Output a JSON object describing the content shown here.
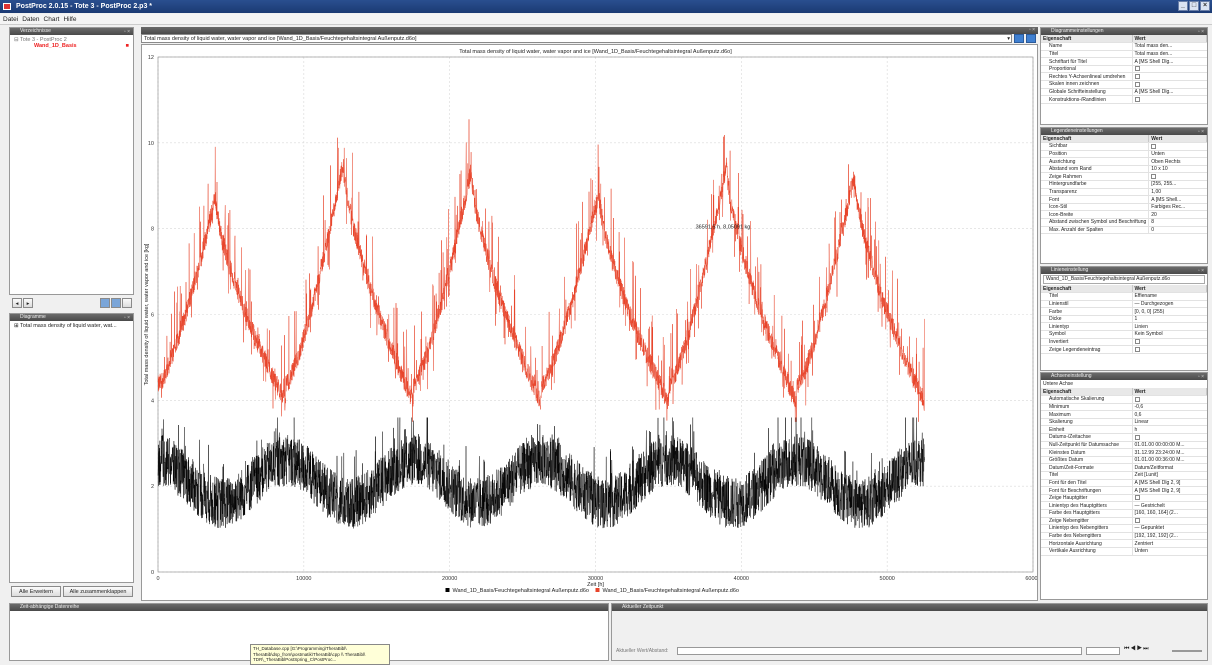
{
  "window": {
    "title": "PostProc 2.0.15 - Tote 3 - PostProc 2.p3 *"
  },
  "menu": [
    "Datei",
    "Daten",
    "Chart",
    "Hilfe"
  ],
  "left_top": {
    "header": "Verzeichnisse",
    "root": "Tote 3 - PostProc 2",
    "selected": "Wand_1D_Basis"
  },
  "left_bottom": {
    "header": "Diagramme",
    "item": "Total mass density of liquid water, wat..."
  },
  "left_buttons": {
    "expand": "Alle Erweitern",
    "collapse": "Alle zusammenklappen"
  },
  "chart_header": {
    "combo_value": "Total mass density of liquid water, water vapor and ice [Wand_1D_Basis/Feuchtegehaltsintegral Außenputz.d6o]"
  },
  "chart_data": {
    "type": "line",
    "title": "Total mass density of liquid water, water vapor and ice [Wand_1D_Basis/Feuchtegehaltsintegral Außenputz.d6o]",
    "xlabel": "Zeit [h]",
    "ylabel": "Total mass density of liquid water, water vapor and ice [kg]",
    "xlim": [
      0,
      60000
    ],
    "ylim": [
      0,
      12
    ],
    "xticks": [
      "0",
      "10000",
      "20000",
      "30000",
      "40000",
      "50000",
      "60000"
    ],
    "yticks": [
      "0",
      "2",
      "4",
      "6",
      "8",
      "10",
      "12"
    ],
    "grid": true,
    "annotation": "36591,5 h, 8,05091 kg",
    "series": [
      {
        "name": "Wand_1D_Basis/Feuchtegehaltsintegral Außenputz.d6o",
        "color": "#000000",
        "approx_range": [
          1,
          3.5
        ],
        "period_h": 8760,
        "x_end": 52560
      },
      {
        "name": "Wand_1D_Basis/Feuchtegehaltsintegral Außenputz.d6o",
        "color": "#e8442a",
        "approx_range": [
          3.6,
          9.8
        ],
        "period_h": 8760,
        "x_end": 52560,
        "annual_peaks": [
          9.2,
          10.0,
          9.8,
          9.3,
          9.9,
          9.7
        ]
      }
    ]
  },
  "right_panels": {
    "diagram": {
      "header": "Diagrammeinstellungen",
      "col_prop": "Eigenschaft",
      "col_val": "Wert",
      "rows": [
        [
          "Name",
          "Total mass den..."
        ],
        [
          "Titel",
          "Total mass den..."
        ],
        [
          "Schriftart für Titel",
          "A [MS Shell Dlg..."
        ],
        [
          "Proportional",
          ""
        ],
        [
          "Rechtes Y-Achsenlineal umdrehen",
          ""
        ],
        [
          "Skalen innen zeichnen",
          ""
        ],
        [
          "Globale Schrifteinstellung",
          "A [MS Shell Dlg..."
        ],
        [
          "Konstruktions-/Randlinien",
          ""
        ]
      ]
    },
    "legend": {
      "header": "Legendeneinstellungen",
      "col_prop": "Eigenschaft",
      "col_val": "Wert",
      "rows": [
        [
          "Sichtbar",
          ""
        ],
        [
          "Position",
          "Unten"
        ],
        [
          "Ausrichtung",
          "Oben Rechts"
        ],
        [
          "Abstand vom Rand",
          "10 x 10"
        ],
        [
          "Zeige Rahmen",
          ""
        ],
        [
          "Hintergrundfarbe",
          "[255, 255..."
        ],
        [
          "Transparenz",
          "1,00"
        ],
        [
          "Font",
          "A [MS Shell..."
        ],
        [
          "Icon-Stil",
          "Farbiges Rec..."
        ],
        [
          "Icon-Breite",
          "20"
        ],
        [
          "Abstand zwischen Symbol und Beschriftung",
          "8"
        ],
        [
          "Max. Anzahl der Spalten",
          "0"
        ]
      ]
    },
    "line": {
      "header": "Linieneinstellung",
      "dataset": "Wand_1D_Basis/Feuchtegehaltsintegral Außenputz.d6o",
      "col_prop": "Eigenschaft",
      "col_val": "Wert",
      "rows": [
        [
          "Titel",
          "Effiename"
        ],
        [
          "Linienstil",
          "— Durchgezogen"
        ],
        [
          "Farbe",
          "[0, 0, 0] (255)"
        ],
        [
          "Dicke",
          "1"
        ],
        [
          "Linientyp",
          "Linien"
        ],
        [
          "Symbol",
          "Kein Symbol"
        ],
        [
          "Invertiert",
          ""
        ],
        [
          "Zeige Legendeneintrag",
          ""
        ]
      ]
    },
    "axis": {
      "header": "Achseneinstellung",
      "axis_name": "Untere Achse",
      "col_prop": "Eigenschaft",
      "col_val": "Wert",
      "rows": [
        [
          "Automatische Skalierung",
          ""
        ],
        [
          "Minimum",
          "-0,6"
        ],
        [
          "Maximum",
          "0,6"
        ],
        [
          "Skalierung",
          "Linear"
        ],
        [
          "Einheit",
          "h"
        ],
        [
          "Datums-/Zeitachse",
          ""
        ],
        [
          "Null-Zeitpunkt für Datumsachse",
          "01.01.00 00:00:00 M..."
        ],
        [
          "Kleinstes Datum",
          "31.12.99 23:24:00 M..."
        ],
        [
          "Größtes Datum",
          "01.01.00 00:36:00 M..."
        ],
        [
          "Datum/Zeit-Formate",
          "Datum/Zeitformat"
        ],
        [
          "Titel",
          "Zeit [Lunit]"
        ],
        [
          "Font für den Titel",
          "A [MS Shell Dlg 2, 9]"
        ],
        [
          "Font für Beschriftungen",
          "A [MS Shell Dlg 2, 9]"
        ],
        [
          "Zeige Hauptgitter",
          ""
        ],
        [
          "Linientyp des Hauptgitters",
          "— Gestrichelt"
        ],
        [
          "Farbe des Hauptgitters",
          "[160, 160, 164] (2..."
        ],
        [
          "Zeige Nebengitter",
          ""
        ],
        [
          "Linientyp des Nebengitters",
          "— Gepunktet"
        ],
        [
          "Farbe des Nebengitters",
          "[192, 192, 192] (2..."
        ],
        [
          "Horizontale Ausrichtung",
          "Zentriert"
        ],
        [
          "Vertikale Ausrichtung",
          "Unten"
        ]
      ]
    }
  },
  "bottom": {
    "left_header": "Zeit-abhängige Datenreihe",
    "right_header": "Aktueller Zeitpunkt",
    "right_label": "Aktueller Wert/Abstand:",
    "tooltip_lines": [
      "TH_Database.cpp [G:\\Programming\\TheraBibl\\",
      "TheraBib\\dsp_from\\postmatik\\TheraBib\\cpp \\\\ TheraBibl\\",
      "TDR\\_TheraBiblPostSpring_C\\PostProc..."
    ]
  }
}
